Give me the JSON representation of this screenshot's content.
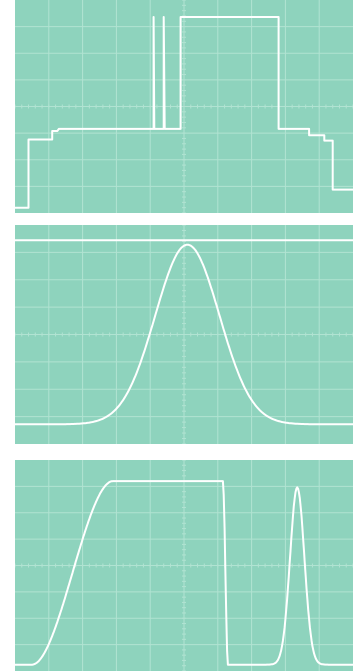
{
  "image": {
    "screen_color": "#8ed3bd",
    "grid_color": "#b8e6d6",
    "trace_color": "#ffffff",
    "grid_divisions": {
      "x": 10,
      "y": 8
    }
  },
  "traces": [
    {
      "name": "stepped-pulse-trace",
      "description_free": true,
      "points": [
        [
          0,
          0.975
        ],
        [
          0.04,
          0.975
        ],
        [
          0.04,
          0.655
        ],
        [
          0.11,
          0.655
        ],
        [
          0.11,
          0.615
        ],
        [
          0.125,
          0.615
        ],
        [
          0.13,
          0.605
        ],
        [
          0.335,
          0.605
        ],
        [
          0.335,
          0.605
        ],
        [
          0.41,
          0.605
        ],
        [
          0.41,
          0.08
        ],
        [
          0.412,
          0.605
        ],
        [
          0.44,
          0.605
        ],
        [
          0.44,
          0.08
        ],
        [
          0.443,
          0.605
        ],
        [
          0.49,
          0.605
        ],
        [
          0.49,
          0.08
        ],
        [
          0.78,
          0.08
        ],
        [
          0.78,
          0.605
        ],
        [
          0.87,
          0.605
        ],
        [
          0.87,
          0.635
        ],
        [
          0.915,
          0.635
        ],
        [
          0.915,
          0.66
        ],
        [
          0.94,
          0.66
        ],
        [
          0.94,
          0.89
        ],
        [
          1,
          0.89
        ]
      ]
    },
    {
      "name": "gaussian-pulse-trace",
      "baseline": 0.91,
      "peak": 0.09,
      "center": 0.51,
      "width": 0.095,
      "top_line": 0.07
    },
    {
      "name": "ramp-and-pulse-trace",
      "baseline": 0.97,
      "top": 0.1,
      "ramp_start": 0.05,
      "ramp_end": 0.29,
      "plateau_end": 0.615,
      "pulse_center": 0.835,
      "pulse_width": 0.06,
      "pulse_peak": 0.13
    }
  ]
}
